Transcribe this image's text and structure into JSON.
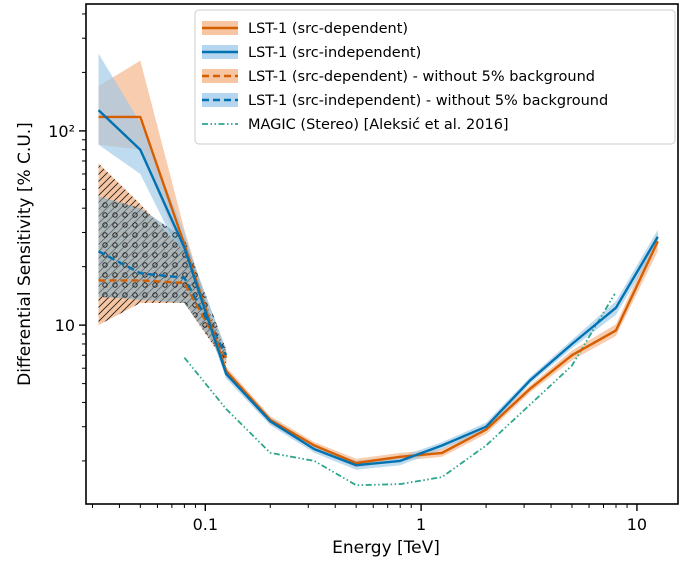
{
  "chart_data": {
    "type": "line",
    "xlabel": "Energy [TeV]",
    "ylabel": "Differential Sensitivity [% C.U.]",
    "xscale": "log",
    "yscale": "log",
    "xlim": [
      0.028,
      15.5
    ],
    "ylim": [
      1.2,
      450
    ],
    "xticks": [
      {
        "value": 0.1,
        "label": "0.1"
      },
      {
        "value": 1,
        "label": "1"
      },
      {
        "value": 10,
        "label": "10"
      }
    ],
    "yticks": [
      {
        "value": 10,
        "label": "10"
      },
      {
        "value": 100,
        "label": "10²"
      }
    ],
    "grid": false,
    "legend_position": "top-right",
    "colors": {
      "orange": "#d55e00",
      "blue": "#0072b2",
      "green": "#2ca58d",
      "orange_band": "#f4b183",
      "blue_band": "#9cc8e8"
    },
    "series": [
      {
        "name": "LST-1 (src-dependent)",
        "color": "#d55e00",
        "style": "solid",
        "x": [
          0.032,
          0.05,
          0.08,
          0.125,
          0.2,
          0.32,
          0.5,
          0.8,
          1.25,
          2.0,
          3.2,
          5.0,
          8.0,
          12.5
        ],
        "y": [
          118,
          118,
          26,
          5.8,
          3.25,
          2.4,
          1.95,
          2.1,
          2.2,
          2.9,
          4.7,
          7.0,
          9.4,
          27
        ],
        "band_low": [
          85,
          80,
          22,
          5.5,
          3.1,
          2.3,
          1.85,
          2.0,
          2.1,
          2.75,
          4.5,
          6.6,
          8.8,
          24
        ],
        "band_high": [
          170,
          230,
          31,
          6.1,
          3.4,
          2.5,
          2.05,
          2.2,
          2.3,
          3.05,
          4.9,
          7.4,
          10.1,
          30
        ]
      },
      {
        "name": "LST-1 (src-independent)",
        "color": "#0072b2",
        "style": "solid",
        "x": [
          0.032,
          0.05,
          0.08,
          0.125,
          0.2,
          0.32,
          0.5,
          0.8,
          1.25,
          2.0,
          3.2,
          5.0,
          8.0,
          12.5
        ],
        "y": [
          128,
          80,
          25,
          5.6,
          3.2,
          2.3,
          1.9,
          2.0,
          2.4,
          3.0,
          5.2,
          8.0,
          12.3,
          28.5
        ],
        "band_low": [
          85,
          60,
          21,
          5.3,
          3.05,
          2.2,
          1.8,
          1.9,
          2.3,
          2.85,
          5.0,
          7.6,
          11.3,
          26
        ],
        "band_high": [
          250,
          110,
          30,
          5.9,
          3.35,
          2.4,
          2.0,
          2.1,
          2.5,
          3.15,
          5.4,
          8.4,
          13.3,
          31
        ]
      },
      {
        "name": "LST-1 (src-dependent) - without 5% background",
        "color": "#d55e00",
        "style": "dashed",
        "x": [
          0.032,
          0.05,
          0.08,
          0.125
        ],
        "y": [
          17,
          17,
          16.5,
          6.8
        ],
        "band_low": [
          10,
          13,
          13,
          6.3
        ],
        "band_high": [
          68,
          42,
          24,
          7.3
        ]
      },
      {
        "name": "LST-1 (src-independent) - without 5% background",
        "color": "#0072b2",
        "style": "dashed",
        "x": [
          0.032,
          0.05,
          0.08,
          0.125
        ],
        "y": [
          24,
          18.5,
          17.5,
          7.0
        ],
        "band_low": [
          14,
          13.5,
          13,
          6.5
        ],
        "band_high": [
          46,
          40,
          28,
          7.5
        ]
      },
      {
        "name": "MAGIC (Stereo) [Aleksić et al. 2016]",
        "color": "#2ca58d",
        "style": "dashdotdot",
        "x": [
          0.08,
          0.125,
          0.2,
          0.32,
          0.5,
          0.8,
          1.25,
          2.0,
          3.2,
          5.0,
          7.9
        ],
        "y": [
          6.8,
          3.7,
          2.2,
          2.0,
          1.5,
          1.52,
          1.65,
          2.4,
          3.9,
          6.2,
          14.5
        ]
      }
    ]
  }
}
